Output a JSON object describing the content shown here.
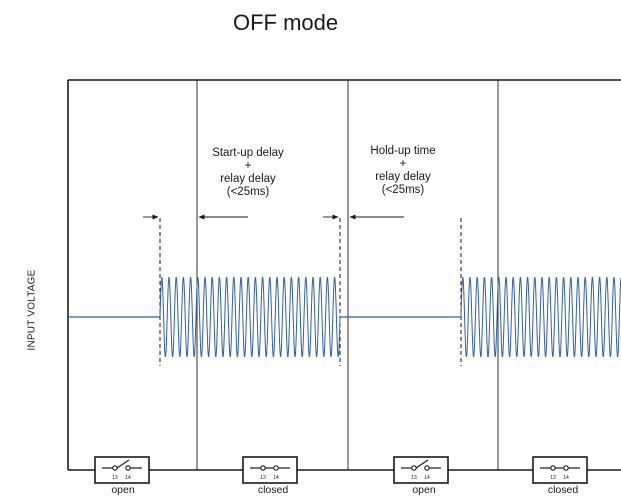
{
  "title": "OFF mode",
  "y_axis_label": "INPUT VOLTAGE",
  "annotations": {
    "startup": [
      "Start-up delay",
      "+",
      "relay delay",
      "(<25ms)"
    ],
    "holdup": [
      "Hold-up time",
      "+",
      "relay delay",
      "(<25ms)"
    ]
  },
  "switches": [
    {
      "state": "open",
      "terminals": [
        "13",
        "14"
      ]
    },
    {
      "state": "closed",
      "terminals": [
        "13",
        "14"
      ]
    },
    {
      "state": "open",
      "terminals": [
        "13",
        "14"
      ]
    },
    {
      "state": "closed",
      "terminals": [
        "13",
        "14"
      ]
    }
  ],
  "colors": {
    "signal": "#2f5fb3",
    "line": "#1a1a1a",
    "background": "#ffffff"
  }
}
